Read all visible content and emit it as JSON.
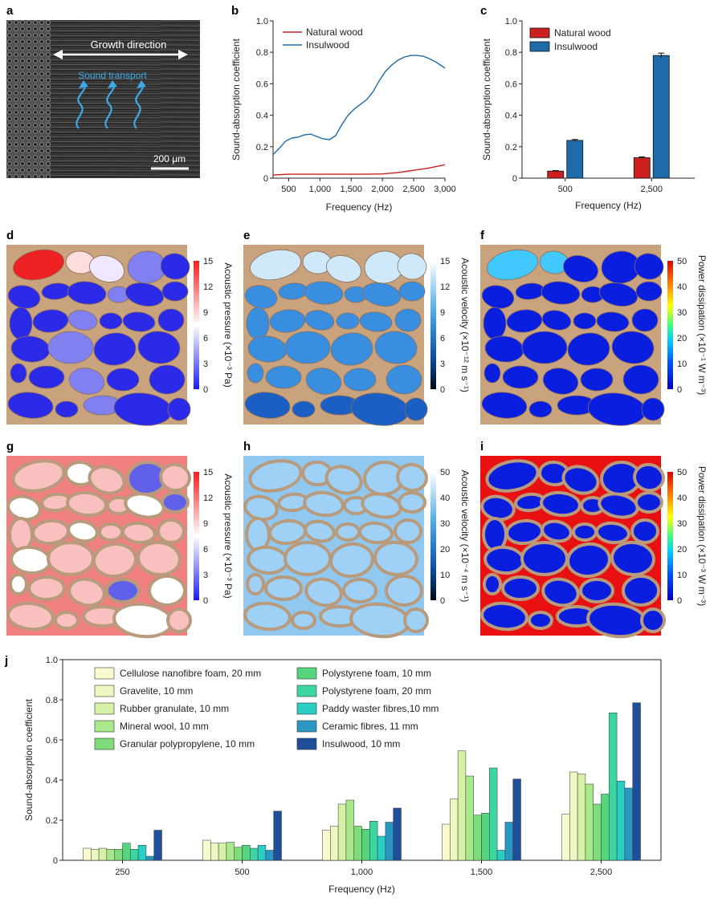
{
  "panels": {
    "a": {
      "label": "a",
      "growth_direction": "Growth direction",
      "sound_transport": "Sound transport",
      "scale_bar": "200 μm"
    },
    "d": {
      "label": "d",
      "cbar_label": "Acoustic pressure (×10⁻³ Pa)",
      "cbar_ticks": [
        "0",
        "3",
        "6",
        "9",
        "12",
        "15"
      ]
    },
    "e": {
      "label": "e",
      "cbar_label": "Acoustic velocity (×10⁻¹² m s⁻¹)",
      "cbar_ticks": [
        "0",
        "3",
        "6",
        "9",
        "12",
        "15"
      ]
    },
    "f": {
      "label": "f",
      "cbar_label": "Power dissipation (×10⁻¹ W m⁻³)",
      "cbar_ticks": [
        "0",
        "10",
        "20",
        "30",
        "40",
        "50"
      ]
    },
    "g": {
      "label": "g",
      "cbar_label": "Acoustic pressure (×10⁻³ Pa)",
      "cbar_ticks": [
        "0",
        "3",
        "6",
        "9",
        "12",
        "15"
      ]
    },
    "h": {
      "label": "h",
      "cbar_label": "Acoustic velocity (×10⁻⁴ m s⁻¹)",
      "cbar_ticks": [
        "0",
        "10",
        "20",
        "30",
        "40",
        "50"
      ]
    },
    "i": {
      "label": "i",
      "cbar_label": "Power dissipation (×10⁻³ W m⁻³)",
      "cbar_ticks": [
        "0",
        "10",
        "20",
        "30",
        "40",
        "50"
      ]
    }
  },
  "colors": {
    "natural_wood": "#cc1f1f",
    "insulwood": "#1f6aa8",
    "wood_wall": "#c9a27e",
    "j_palette": [
      "#fafad0",
      "#edf7bf",
      "#d6f0a6",
      "#aae88c",
      "#7fdc7a",
      "#55d67e",
      "#3dd6a0",
      "#28cfc2",
      "#2a98c2",
      "#1f4f9a"
    ]
  },
  "chart_data": [
    {
      "id": "b",
      "label": "b",
      "type": "line",
      "xlabel": "Frequency (Hz)",
      "ylabel": "Sound-absorption coefficient",
      "xlim": [
        250,
        3000
      ],
      "ylim": [
        0,
        1.0
      ],
      "xticks": [
        "500",
        "1,000",
        "1,500",
        "2,000",
        "2,500",
        "3,000"
      ],
      "xtick_values": [
        500,
        1000,
        1500,
        2000,
        2500,
        3000
      ],
      "yticks": [
        "0",
        "0.2",
        "0.4",
        "0.6",
        "0.8",
        "1.0"
      ],
      "ytick_values": [
        0,
        0.2,
        0.4,
        0.6,
        0.8,
        1.0
      ],
      "legend_position": "top-left",
      "series": [
        {
          "name": "Natural wood",
          "x": [
            250,
            500,
            750,
            1000,
            1250,
            1500,
            1750,
            2000,
            2250,
            2500,
            2750,
            3000
          ],
          "y": [
            0.02,
            0.025,
            0.025,
            0.025,
            0.025,
            0.025,
            0.025,
            0.027,
            0.035,
            0.05,
            0.065,
            0.085
          ]
        },
        {
          "name": "Insulwood",
          "x": [
            250,
            350,
            450,
            550,
            650,
            750,
            850,
            950,
            1050,
            1150,
            1250,
            1350,
            1450,
            1550,
            1650,
            1750,
            1850,
            1950,
            2050,
            2150,
            2250,
            2350,
            2450,
            2550,
            2650,
            2750,
            2850,
            3000
          ],
          "y": [
            0.15,
            0.19,
            0.235,
            0.255,
            0.26,
            0.275,
            0.28,
            0.265,
            0.25,
            0.245,
            0.27,
            0.34,
            0.4,
            0.44,
            0.47,
            0.5,
            0.55,
            0.62,
            0.68,
            0.72,
            0.75,
            0.77,
            0.78,
            0.78,
            0.775,
            0.76,
            0.74,
            0.7
          ]
        }
      ]
    },
    {
      "id": "c",
      "label": "c",
      "type": "bar",
      "xlabel": "Frequency (Hz)",
      "ylabel": "Sound-absorption coefficient",
      "ylim": [
        0,
        1.0
      ],
      "yticks": [
        "0",
        "0.2",
        "0.4",
        "0.6",
        "0.8",
        "1.0"
      ],
      "ytick_values": [
        0,
        0.2,
        0.4,
        0.6,
        0.8,
        1.0
      ],
      "categories": [
        "500",
        "2,500"
      ],
      "legend_position": "top-left",
      "series": [
        {
          "name": "Natural wood",
          "values": [
            0.045,
            0.13
          ],
          "errors": [
            0.003,
            0.005
          ]
        },
        {
          "name": "Insulwood",
          "values": [
            0.24,
            0.78
          ],
          "errors": [
            0.006,
            0.015
          ]
        }
      ]
    },
    {
      "id": "j",
      "label": "j",
      "type": "bar",
      "xlabel": "Frequency (Hz)",
      "ylabel": "Sound-absorption coefficient",
      "ylim": [
        0,
        1.0
      ],
      "yticks": [
        "0",
        "0.2",
        "0.4",
        "0.6",
        "0.8",
        "1.0"
      ],
      "ytick_values": [
        0,
        0.2,
        0.4,
        0.6,
        0.8,
        1.0
      ],
      "categories": [
        "250",
        "500",
        "1,000",
        "1,500",
        "2,500"
      ],
      "legend_position": "top-left",
      "series": [
        {
          "name": "Cellulose nanofibre foam, 20 mm",
          "values": [
            0.06,
            0.1,
            0.15,
            0.18,
            0.23
          ]
        },
        {
          "name": "Gravelite, 10 mm",
          "values": [
            0.055,
            0.085,
            0.17,
            0.305,
            0.44
          ]
        },
        {
          "name": "Rubber granulate, 10 mm",
          "values": [
            0.06,
            0.085,
            0.28,
            0.545,
            0.43
          ]
        },
        {
          "name": "Mineral wool, 10 mm",
          "values": [
            0.055,
            0.09,
            0.3,
            0.42,
            0.38
          ]
        },
        {
          "name": "Granular polypropylene, 10 mm",
          "values": [
            0.055,
            0.065,
            0.17,
            0.225,
            0.28
          ]
        },
        {
          "name": "Polystyrene foam, 10 mm",
          "values": [
            0.085,
            0.075,
            0.155,
            0.235,
            0.33
          ]
        },
        {
          "name": "Polystyrene foam, 20 mm",
          "values": [
            0.055,
            0.06,
            0.195,
            0.46,
            0.735
          ]
        },
        {
          "name": "Paddy waster fibres,10 mm",
          "values": [
            0.075,
            0.075,
            0.12,
            0.05,
            0.395
          ]
        },
        {
          "name": "Ceramic fibres, 11 mm",
          "values": [
            0.02,
            0.05,
            0.19,
            0.19,
            0.36
          ]
        },
        {
          "name": "Insulwood, 10 mm",
          "values": [
            0.15,
            0.245,
            0.26,
            0.405,
            0.785
          ]
        }
      ]
    }
  ]
}
